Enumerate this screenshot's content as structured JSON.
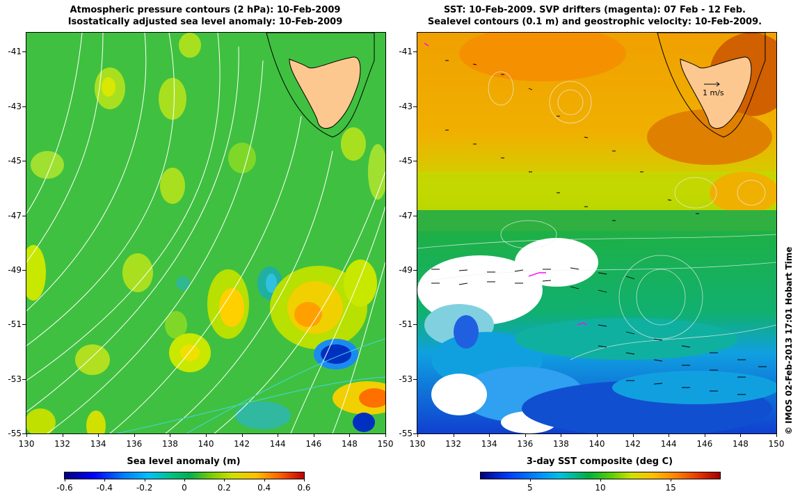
{
  "left_panel": {
    "title_line1": "Atmospheric pressure contours (2 hPa): 10-Feb-2009",
    "title_line2": "Isostatically adjusted sea level anomaly: 10-Feb-2009",
    "colorbar_label": "Sea level anomaly (m)",
    "colorbar_ticks": [
      "-0.6",
      "-0.4",
      "-0.2",
      "0",
      "0.2",
      "0.4",
      "0.6"
    ],
    "colorbar_range": [
      -0.6,
      0.6
    ]
  },
  "right_panel": {
    "title_line1": "SST: 10-Feb-2009. SVP drifters (magenta): 07 Feb - 12 Feb.",
    "title_line2": "Sealevel contours (0.1 m) and geostrophic velocity: 10-Feb-2009.",
    "colorbar_label": "3-day SST composite (deg C)",
    "colorbar_ticks": [
      "5",
      "10",
      "15"
    ],
    "colorbar_range": [
      1.5,
      18.5
    ],
    "velocity_scale_label": "1 m/s"
  },
  "axes": {
    "x_ticks": [
      "130",
      "132",
      "134",
      "136",
      "138",
      "140",
      "142",
      "144",
      "146",
      "148",
      "150"
    ],
    "y_ticks": [
      "-41",
      "-43",
      "-45",
      "-47",
      "-49",
      "-51",
      "-53",
      "-55"
    ],
    "lon_range": [
      130,
      150
    ],
    "lat_range": [
      -55,
      -40.3
    ]
  },
  "credit": "© IMOS 02-Feb-2013 17:01 Hobart Time",
  "colors": {
    "land": "#fcc890",
    "sla_background": "#3cbf3c",
    "sst_warm": "#f5a000",
    "sst_cool": "#1060e0"
  }
}
